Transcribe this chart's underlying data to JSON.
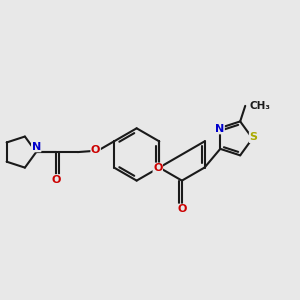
{
  "bg_color": "#e8e8e8",
  "bond_color": "#1a1a1a",
  "bond_lw": 1.5,
  "atom_colors": {
    "O": "#cc0000",
    "N": "#0000cc",
    "S": "#aaaa00",
    "C": "#1a1a1a"
  },
  "font_size": 8.0,
  "fig_w": 3.0,
  "fig_h": 3.0,
  "dpi": 100
}
